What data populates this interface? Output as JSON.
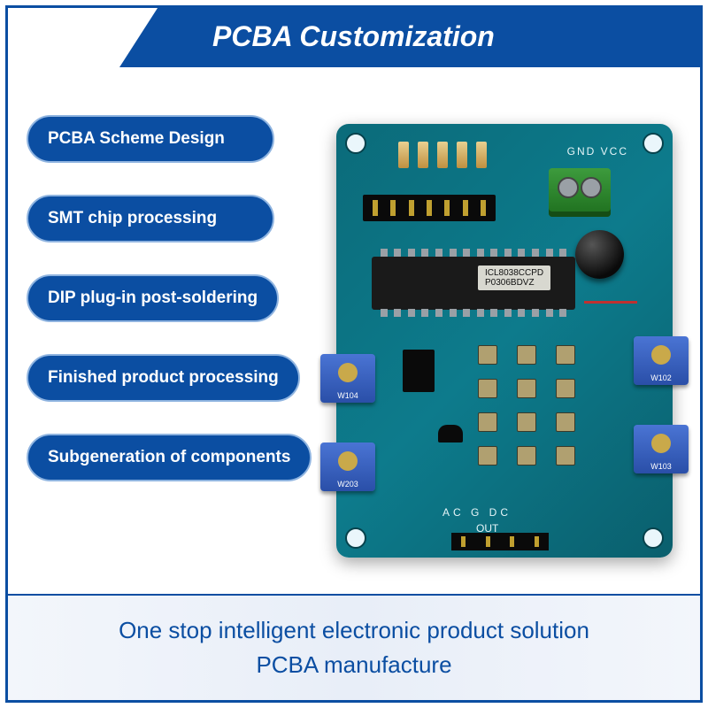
{
  "header": {
    "title": "PCBA Customization"
  },
  "pills": [
    "PCBA Scheme Design",
    "SMT chip processing",
    "DIP plug-in post-soldering",
    "Finished product processing",
    "Subgeneration of components"
  ],
  "pcb": {
    "silk_top": "GND  VCC",
    "chip_label_line1": "ICL8038CCPD",
    "chip_label_line2": "P0306BDVZ",
    "pot_labels": [
      "W104",
      "W203",
      "W102",
      "W103"
    ],
    "silk_bottom": "AC  G  DC",
    "silk_out": "OUT",
    "board_color": "#0d7b8c",
    "pot_color": "#2a4fa8",
    "terminal_color": "#1e6f1e"
  },
  "footer": {
    "line1": "One stop intelligent electronic product solution",
    "line2": "PCBA manufacture"
  },
  "colors": {
    "brand_blue": "#0b4ea2",
    "pill_border": "#8fb4e0",
    "footer_bg": "#eef3fb"
  }
}
